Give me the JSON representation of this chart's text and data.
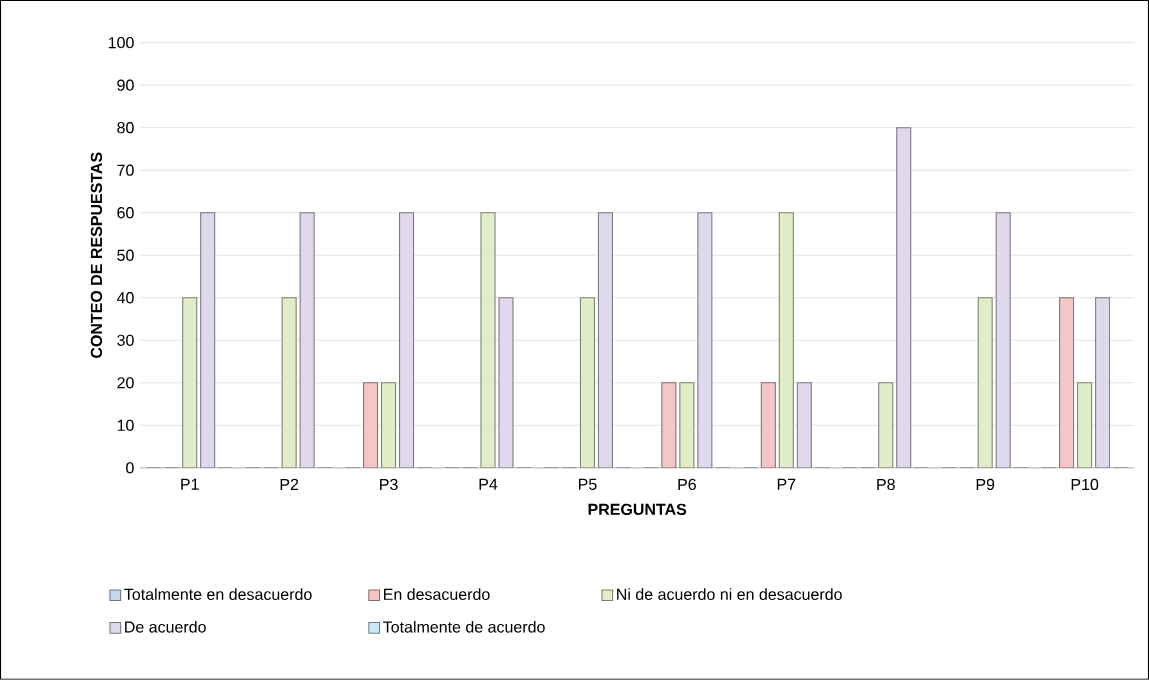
{
  "chart_data": {
    "type": "bar",
    "xlabel": "PREGUNTAS",
    "ylabel": "CONTEO DE RESPUESTAS",
    "categories": [
      "P1",
      "P2",
      "P3",
      "P4",
      "P5",
      "P6",
      "P7",
      "P8",
      "P9",
      "P10"
    ],
    "series": [
      {
        "name": "Totalmente en desacuerdo",
        "color": "#c6d9f1",
        "values": [
          0,
          0,
          0,
          0,
          0,
          0,
          0,
          0,
          0,
          0
        ]
      },
      {
        "name": "En desacuerdo",
        "color": "#f4c7c6",
        "values": [
          0,
          0,
          20,
          0,
          0,
          20,
          20,
          0,
          0,
          40
        ]
      },
      {
        "name": "Ni de acuerdo ni en desacuerdo",
        "color": "#e1ecc8",
        "values": [
          40,
          40,
          20,
          60,
          40,
          20,
          60,
          20,
          40,
          20
        ]
      },
      {
        "name": "De acuerdo",
        "color": "#e0d8ec",
        "values": [
          60,
          60,
          60,
          40,
          60,
          60,
          20,
          80,
          60,
          40
        ]
      },
      {
        "name": "Totalmente de acuerdo",
        "color": "#c9eaf3",
        "values": [
          0,
          0,
          0,
          0,
          0,
          0,
          0,
          0,
          0,
          0
        ]
      }
    ],
    "ylim": [
      0,
      100
    ],
    "yticks": [
      0,
      10,
      20,
      30,
      40,
      50,
      60,
      70,
      80,
      90,
      100
    ],
    "grid": "y",
    "legend": "bottom"
  }
}
